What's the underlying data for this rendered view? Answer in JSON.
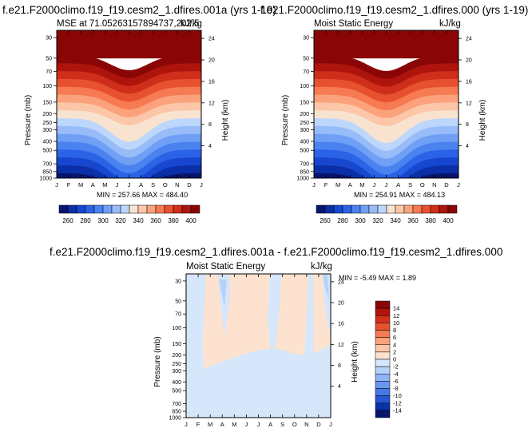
{
  "chart_data": [
    {
      "type": "heatmap",
      "title": "f.e21.F2000climo.f19_f19.cesm2_1.dfires.001a (yrs 1-19)",
      "subtitle_left": "MSE at 71.05263157894737,202.5",
      "subtitle_right": "kJ/kg",
      "xlabel": "",
      "ylabel": "Pressure (mb)",
      "ylabel_right": "Height (km)",
      "x_ticks": [
        "J",
        "F",
        "M",
        "A",
        "M",
        "J",
        "J",
        "A",
        "S",
        "O",
        "N",
        "D",
        "J"
      ],
      "y_ticks": [
        "30",
        "50",
        "70",
        "100",
        "150",
        "200",
        "250",
        "300",
        "400",
        "500",
        "700",
        "850",
        "1000"
      ],
      "y_right_ticks": [
        "24",
        "20",
        "16",
        "12",
        "8",
        "4"
      ],
      "stats": "MIN = 257.66 MAX = 484.40",
      "colorbar_labels": [
        "260",
        "280",
        "300",
        "320",
        "340",
        "360",
        "380",
        "400"
      ],
      "ylim": [
        1000,
        30
      ],
      "variant": "abs1"
    },
    {
      "type": "heatmap",
      "title": "f.e21.F2000climo.f19_f19.cesm2_1.dfires.000 (yrs 1-19)",
      "subtitle_left": "Moist Static Energy",
      "subtitle_right": "kJ/kg",
      "xlabel": "",
      "ylabel": "Pressure (mb)",
      "ylabel_right": "Height (km)",
      "x_ticks": [
        "J",
        "F",
        "M",
        "A",
        "M",
        "J",
        "J",
        "A",
        "S",
        "O",
        "N",
        "D",
        "J"
      ],
      "y_ticks": [
        "30",
        "50",
        "70",
        "100",
        "150",
        "200",
        "250",
        "300",
        "400",
        "500",
        "700",
        "850",
        "1000"
      ],
      "y_right_ticks": [
        "24",
        "20",
        "16",
        "12",
        "8",
        "4"
      ],
      "stats": "MIN = 254.91 MAX = 484.13",
      "colorbar_labels": [
        "260",
        "280",
        "300",
        "320",
        "340",
        "360",
        "380",
        "400"
      ],
      "ylim": [
        1000,
        30
      ],
      "variant": "abs2"
    },
    {
      "type": "heatmap",
      "title": "f.e21.F2000climo.f19_f19.cesm2_1.dfires.001a - f.e21.F2000climo.f19_f19.cesm2_1.dfires.000",
      "subtitle_left": "Moist Static Energy",
      "subtitle_right": "kJ/kg",
      "xlabel": "",
      "ylabel": "Pressure (mb)",
      "ylabel_right": "Height (km)",
      "x_ticks": [
        "J",
        "F",
        "M",
        "A",
        "M",
        "J",
        "J",
        "A",
        "S",
        "O",
        "N",
        "D",
        "J"
      ],
      "y_ticks": [
        "30",
        "50",
        "70",
        "100",
        "150",
        "200",
        "250",
        "300",
        "400",
        "500",
        "700",
        "850",
        "1000"
      ],
      "y_right_ticks": [
        "24",
        "20",
        "16",
        "12",
        "8",
        "4"
      ],
      "stats": "MIN = -5.49 MAX = 1.89",
      "colorbar_labels": [
        "14",
        "12",
        "10",
        "8",
        "6",
        "4",
        "2",
        "0",
        "-2",
        "-4",
        "-6",
        "-8",
        "-10",
        "-12",
        "-14"
      ],
      "ylim": [
        1000,
        30
      ],
      "variant": "diff"
    }
  ],
  "colors": {
    "abs_scale": [
      "#08156e",
      "#0a2fa6",
      "#1747cf",
      "#2b63e6",
      "#4a82f0",
      "#6fa0f5",
      "#97bcf8",
      "#bdd6fb",
      "#f8e3d0",
      "#fcc7a8",
      "#fba27c",
      "#f67a52",
      "#e8512f",
      "#cf2f1a",
      "#ad150c",
      "#8a0606"
    ],
    "diff_scale": [
      "#8a0606",
      "#b0140b",
      "#d0301c",
      "#e8512f",
      "#f67a52",
      "#fba27c",
      "#fcc7a8",
      "#fde3cf",
      "#d6e6fb",
      "#b6d2f9",
      "#8fb5f6",
      "#6a96f0",
      "#4677e6",
      "#2656d2",
      "#0b31a8",
      "#08156e"
    ]
  }
}
